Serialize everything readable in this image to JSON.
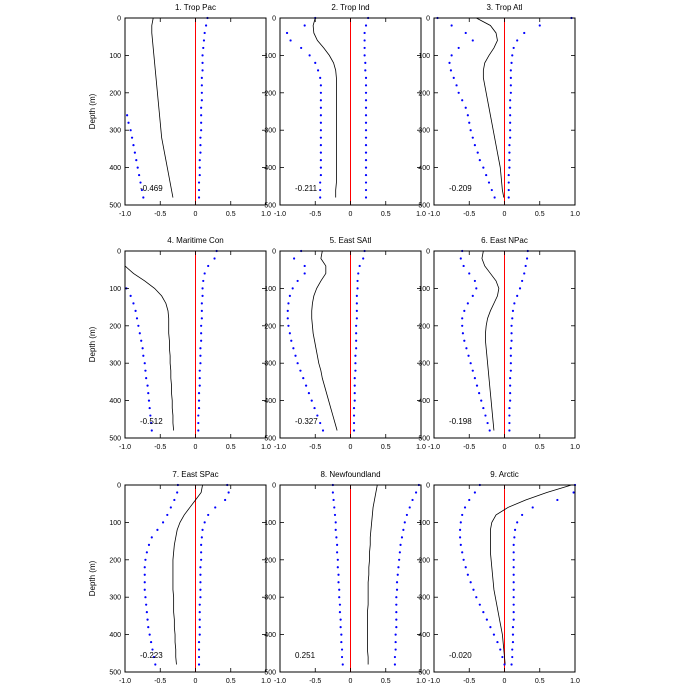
{
  "figure": {
    "ylabel": "Depth (m)",
    "xticks": [
      "-1.0",
      "-0.5",
      "0",
      "0.5",
      "1.0"
    ],
    "yticks": [
      "0",
      "100",
      "200",
      "300",
      "400",
      "500"
    ],
    "colors": {
      "zero_line": "#ff0000",
      "mean_line": "#000000",
      "bounds": "#0000ff"
    }
  },
  "chart_data": [
    {
      "type": "line",
      "title": "1. Trop Pac",
      "annotation": "-0.469",
      "xlim": [
        -1,
        1
      ],
      "ylim": [
        500,
        0
      ],
      "depth": [
        0,
        20,
        40,
        60,
        80,
        100,
        120,
        140,
        160,
        180,
        200,
        220,
        240,
        260,
        280,
        300,
        320,
        340,
        360,
        380,
        400,
        420,
        440,
        460,
        480
      ],
      "series": [
        {
          "values": [
            -0.6,
            -0.62,
            -0.62,
            -0.61,
            -0.6,
            -0.59,
            -0.58,
            -0.57,
            -0.56,
            -0.55,
            -0.54,
            -0.53,
            -0.52,
            -0.51,
            -0.5,
            -0.49,
            -0.48,
            -0.46,
            -0.44,
            -0.42,
            -0.4,
            -0.38,
            -0.36,
            -0.34,
            -0.32
          ]
        },
        {
          "values": [
            0.17,
            0.15,
            0.13,
            0.12,
            0.11,
            0.1,
            0.1,
            0.1,
            0.09,
            0.09,
            0.09,
            0.09,
            0.08,
            0.08,
            0.08,
            0.08,
            0.07,
            0.07,
            0.07,
            0.06,
            0.06,
            0.06,
            0.05,
            0.05,
            0.05
          ]
        },
        {
          "values": [
            null,
            null,
            null,
            null,
            null,
            null,
            null,
            null,
            null,
            null,
            null,
            null,
            null,
            -0.97,
            -0.95,
            -0.92,
            -0.9,
            -0.88,
            -0.86,
            -0.84,
            -0.82,
            -0.8,
            -0.78,
            -0.76,
            -0.74
          ]
        }
      ]
    },
    {
      "type": "line",
      "title": "2. Trop Ind",
      "annotation": "-0.211",
      "xlim": [
        -1,
        1
      ],
      "ylim": [
        500,
        0
      ],
      "depth": [
        0,
        20,
        40,
        60,
        80,
        100,
        120,
        140,
        160,
        180,
        200,
        220,
        240,
        260,
        280,
        300,
        320,
        340,
        360,
        380,
        400,
        420,
        440,
        460,
        480
      ],
      "series": [
        {
          "values": [
            -0.5,
            -0.53,
            -0.52,
            -0.47,
            -0.38,
            -0.3,
            -0.24,
            -0.21,
            -0.2,
            -0.2,
            -0.2,
            -0.2,
            -0.2,
            -0.2,
            -0.2,
            -0.2,
            -0.2,
            -0.2,
            -0.2,
            -0.2,
            -0.2,
            -0.2,
            -0.2,
            -0.21,
            -0.21
          ]
        },
        {
          "values": [
            0.25,
            0.22,
            0.2,
            0.2,
            0.2,
            0.2,
            0.21,
            0.21,
            0.22,
            0.22,
            0.22,
            0.22,
            0.22,
            0.22,
            0.22,
            0.22,
            0.22,
            0.22,
            0.22,
            0.22,
            0.22,
            0.22,
            0.22,
            0.22,
            0.22
          ]
        },
        {
          "values": [
            -0.5,
            -0.65,
            -0.9,
            -0.85,
            -0.7,
            -0.58,
            -0.5,
            -0.46,
            -0.43,
            -0.42,
            -0.42,
            -0.42,
            -0.42,
            -0.42,
            -0.42,
            -0.42,
            -0.42,
            -0.42,
            -0.42,
            -0.42,
            -0.42,
            -0.42,
            -0.43,
            -0.43,
            -0.43
          ]
        }
      ]
    },
    {
      "type": "line",
      "title": "3. Trop Atl",
      "annotation": "-0.209",
      "xlim": [
        -1,
        1
      ],
      "ylim": [
        500,
        0
      ],
      "depth": [
        0,
        20,
        40,
        60,
        80,
        100,
        120,
        140,
        160,
        180,
        200,
        220,
        240,
        260,
        280,
        300,
        320,
        340,
        360,
        380,
        400,
        420,
        440,
        460,
        480
      ],
      "series": [
        {
          "values": [
            -0.4,
            -0.2,
            -0.12,
            -0.1,
            -0.15,
            -0.22,
            -0.28,
            -0.3,
            -0.3,
            -0.28,
            -0.26,
            -0.24,
            -0.22,
            -0.2,
            -0.18,
            -0.16,
            -0.14,
            -0.12,
            -0.1,
            -0.08,
            -0.06,
            -0.05,
            -0.04,
            -0.03,
            -0.01
          ]
        },
        {
          "values": [
            0.95,
            0.5,
            0.28,
            0.18,
            0.13,
            0.11,
            0.1,
            0.09,
            0.09,
            0.09,
            0.09,
            0.08,
            0.08,
            0.08,
            0.08,
            0.08,
            0.08,
            0.07,
            0.07,
            0.07,
            0.07,
            0.06,
            0.06,
            0.06,
            0.06
          ]
        },
        {
          "values": [
            -0.95,
            -0.75,
            -0.55,
            -0.45,
            -0.65,
            -0.75,
            -0.78,
            -0.76,
            -0.72,
            -0.68,
            -0.65,
            -0.6,
            -0.55,
            -0.52,
            -0.5,
            -0.48,
            -0.45,
            -0.42,
            -0.38,
            -0.35,
            -0.3,
            -0.26,
            -0.22,
            -0.18,
            -0.14
          ]
        }
      ]
    },
    {
      "type": "line",
      "title": "4. Maritime Con",
      "annotation": "-0.512",
      "xlim": [
        -1,
        1
      ],
      "ylim": [
        500,
        0
      ],
      "depth": [
        0,
        20,
        40,
        60,
        80,
        100,
        120,
        140,
        160,
        180,
        200,
        220,
        240,
        260,
        280,
        300,
        320,
        340,
        360,
        380,
        400,
        420,
        440,
        460,
        480
      ],
      "series": [
        {
          "values": [
            null,
            null,
            -1.0,
            -0.88,
            -0.72,
            -0.58,
            -0.48,
            -0.42,
            -0.39,
            -0.38,
            -0.38,
            -0.38,
            -0.37,
            -0.37,
            -0.36,
            -0.36,
            -0.35,
            -0.35,
            -0.34,
            -0.34,
            -0.33,
            -0.33,
            -0.32,
            -0.32,
            -0.31
          ]
        },
        {
          "values": [
            0.3,
            0.27,
            0.18,
            0.13,
            0.11,
            0.1,
            0.1,
            0.09,
            0.09,
            0.09,
            0.08,
            0.08,
            0.08,
            0.07,
            0.07,
            0.07,
            0.06,
            0.06,
            0.06,
            0.05,
            0.05,
            0.05,
            0.04,
            0.04,
            0.04
          ]
        },
        {
          "values": [
            null,
            null,
            null,
            null,
            null,
            -0.98,
            -0.92,
            -0.88,
            -0.85,
            -0.83,
            -0.81,
            -0.79,
            -0.77,
            -0.75,
            -0.74,
            -0.72,
            -0.71,
            -0.7,
            -0.68,
            -0.67,
            -0.66,
            -0.65,
            -0.64,
            -0.63,
            -0.62
          ]
        }
      ]
    },
    {
      "type": "line",
      "title": "5. East SAtl",
      "annotation": "-0.327",
      "xlim": [
        -1,
        1
      ],
      "ylim": [
        500,
        0
      ],
      "depth": [
        0,
        20,
        40,
        60,
        80,
        100,
        120,
        140,
        160,
        180,
        200,
        220,
        240,
        260,
        280,
        300,
        320,
        340,
        360,
        380,
        400,
        420,
        440,
        460,
        480
      ],
      "series": [
        {
          "values": [
            -0.4,
            -0.42,
            -0.35,
            -0.35,
            -0.42,
            -0.48,
            -0.52,
            -0.54,
            -0.55,
            -0.55,
            -0.54,
            -0.53,
            -0.51,
            -0.49,
            -0.47,
            -0.45,
            -0.42,
            -0.4,
            -0.37,
            -0.34,
            -0.31,
            -0.28,
            -0.25,
            -0.22,
            -0.19
          ]
        },
        {
          "values": [
            0.2,
            0.18,
            0.13,
            0.11,
            0.1,
            0.1,
            0.09,
            0.09,
            0.09,
            0.09,
            0.08,
            0.08,
            0.08,
            0.08,
            0.07,
            0.07,
            0.07,
            0.06,
            0.06,
            0.06,
            0.06,
            0.05,
            0.05,
            0.05,
            0.05
          ]
        },
        {
          "values": [
            -0.7,
            -0.8,
            -0.65,
            -0.65,
            -0.75,
            -0.82,
            -0.86,
            -0.88,
            -0.89,
            -0.89,
            -0.88,
            -0.86,
            -0.84,
            -0.81,
            -0.78,
            -0.75,
            -0.71,
            -0.67,
            -0.63,
            -0.59,
            -0.55,
            -0.51,
            -0.47,
            -0.43,
            -0.39
          ]
        }
      ]
    },
    {
      "type": "line",
      "title": "6. East NPac",
      "annotation": "-0.198",
      "xlim": [
        -1,
        1
      ],
      "ylim": [
        500,
        0
      ],
      "depth": [
        0,
        20,
        40,
        60,
        80,
        100,
        120,
        140,
        160,
        180,
        200,
        220,
        240,
        260,
        280,
        300,
        320,
        340,
        360,
        380,
        400,
        420,
        440,
        460,
        480
      ],
      "series": [
        {
          "values": [
            -0.3,
            -0.32,
            -0.28,
            -0.2,
            -0.12,
            -0.08,
            -0.1,
            -0.15,
            -0.2,
            -0.24,
            -0.26,
            -0.27,
            -0.27,
            -0.26,
            -0.25,
            -0.24,
            -0.23,
            -0.22,
            -0.21,
            -0.2,
            -0.19,
            -0.18,
            -0.17,
            -0.16,
            -0.15
          ]
        },
        {
          "values": [
            0.33,
            0.32,
            0.3,
            0.28,
            0.25,
            0.22,
            0.18,
            0.14,
            0.12,
            0.11,
            0.1,
            0.1,
            0.1,
            0.09,
            0.09,
            0.09,
            0.09,
            0.08,
            0.08,
            0.08,
            0.08,
            0.07,
            0.07,
            0.07,
            0.07
          ]
        },
        {
          "values": [
            -0.6,
            -0.62,
            -0.58,
            -0.5,
            -0.42,
            -0.4,
            -0.45,
            -0.52,
            -0.57,
            -0.6,
            -0.6,
            -0.59,
            -0.57,
            -0.54,
            -0.51,
            -0.48,
            -0.45,
            -0.42,
            -0.39,
            -0.36,
            -0.33,
            -0.3,
            -0.27,
            -0.24,
            -0.21
          ]
        }
      ]
    },
    {
      "type": "line",
      "title": "7. East SPac",
      "annotation": "-0.223",
      "xlim": [
        -1,
        1
      ],
      "ylim": [
        500,
        0
      ],
      "depth": [
        0,
        20,
        40,
        60,
        80,
        100,
        120,
        140,
        160,
        180,
        200,
        220,
        240,
        260,
        280,
        300,
        320,
        340,
        360,
        380,
        400,
        420,
        440,
        460,
        480
      ],
      "series": [
        {
          "values": [
            0.1,
            0.08,
            0.0,
            -0.08,
            -0.16,
            -0.22,
            -0.26,
            -0.28,
            -0.3,
            -0.31,
            -0.32,
            -0.32,
            -0.32,
            -0.32,
            -0.32,
            -0.31,
            -0.31,
            -0.31,
            -0.3,
            -0.3,
            -0.29,
            -0.29,
            -0.28,
            -0.28,
            -0.27
          ]
        },
        {
          "values": [
            0.45,
            0.47,
            0.42,
            0.28,
            0.18,
            0.13,
            0.1,
            0.09,
            0.08,
            0.08,
            0.08,
            0.07,
            0.07,
            0.07,
            0.07,
            0.07,
            0.06,
            0.06,
            0.06,
            0.06,
            0.06,
            0.05,
            0.05,
            0.05,
            0.05
          ]
        },
        {
          "values": [
            -0.25,
            -0.26,
            -0.3,
            -0.35,
            -0.4,
            -0.46,
            -0.54,
            -0.62,
            -0.66,
            -0.69,
            -0.71,
            -0.72,
            -0.72,
            -0.72,
            -0.72,
            -0.71,
            -0.7,
            -0.69,
            -0.68,
            -0.67,
            -0.65,
            -0.63,
            -0.61,
            -0.59,
            -0.57
          ]
        }
      ]
    },
    {
      "type": "line",
      "title": "8. Newfoundland",
      "annotation": "0.251",
      "xlim": [
        -1,
        1
      ],
      "ylim": [
        500,
        0
      ],
      "depth": [
        0,
        20,
        40,
        60,
        80,
        100,
        120,
        140,
        160,
        180,
        200,
        220,
        240,
        260,
        280,
        300,
        320,
        340,
        360,
        380,
        400,
        420,
        440,
        460,
        480
      ],
      "series": [
        {
          "values": [
            0.38,
            0.36,
            0.34,
            0.32,
            0.31,
            0.3,
            0.29,
            0.28,
            0.28,
            0.27,
            0.27,
            0.26,
            0.26,
            0.25,
            0.25,
            0.25,
            0.25,
            0.24,
            0.24,
            0.24,
            0.24,
            0.24,
            0.24,
            0.25,
            0.25
          ]
        },
        {
          "values": [
            0.97,
            0.93,
            0.88,
            0.84,
            0.8,
            0.77,
            0.75,
            0.73,
            0.71,
            0.7,
            0.69,
            0.68,
            0.67,
            0.66,
            0.66,
            0.65,
            0.65,
            0.65,
            0.65,
            0.65,
            0.64,
            0.64,
            0.64,
            0.63,
            0.63
          ]
        },
        {
          "values": [
            -0.25,
            -0.25,
            -0.24,
            -0.23,
            -0.22,
            -0.21,
            -0.21,
            -0.2,
            -0.19,
            -0.19,
            -0.18,
            -0.18,
            -0.17,
            -0.17,
            -0.16,
            -0.16,
            -0.15,
            -0.15,
            -0.14,
            -0.14,
            -0.13,
            -0.13,
            -0.12,
            -0.12,
            -0.11
          ]
        }
      ]
    },
    {
      "type": "line",
      "title": "9. Arctic",
      "annotation": "-0.020",
      "xlim": [
        -1,
        1
      ],
      "ylim": [
        500,
        0
      ],
      "depth": [
        0,
        20,
        40,
        60,
        80,
        100,
        120,
        140,
        160,
        180,
        200,
        220,
        240,
        260,
        280,
        300,
        320,
        340,
        360,
        380,
        400,
        420,
        440,
        460,
        480
      ],
      "series": [
        {
          "values": [
            0.95,
            0.6,
            0.3,
            0.05,
            -0.12,
            -0.18,
            -0.2,
            -0.2,
            -0.2,
            -0.2,
            -0.19,
            -0.18,
            -0.17,
            -0.16,
            -0.15,
            -0.13,
            -0.11,
            -0.09,
            -0.07,
            -0.05,
            -0.03,
            -0.02,
            -0.01,
            0.0,
            0.01
          ]
        },
        {
          "values": [
            1.0,
            0.98,
            0.75,
            0.4,
            0.25,
            0.18,
            0.15,
            0.14,
            0.13,
            0.13,
            0.13,
            0.13,
            0.13,
            0.13,
            0.13,
            0.13,
            0.13,
            0.13,
            0.13,
            0.12,
            0.12,
            0.12,
            0.11,
            0.11,
            0.1
          ]
        },
        {
          "values": [
            -0.35,
            -0.42,
            -0.5,
            -0.56,
            -0.6,
            -0.62,
            -0.63,
            -0.63,
            -0.62,
            -0.6,
            -0.58,
            -0.55,
            -0.52,
            -0.48,
            -0.44,
            -0.4,
            -0.35,
            -0.3,
            -0.25,
            -0.2,
            -0.15,
            -0.1,
            -0.06,
            -0.03,
            0.0
          ]
        }
      ]
    }
  ]
}
